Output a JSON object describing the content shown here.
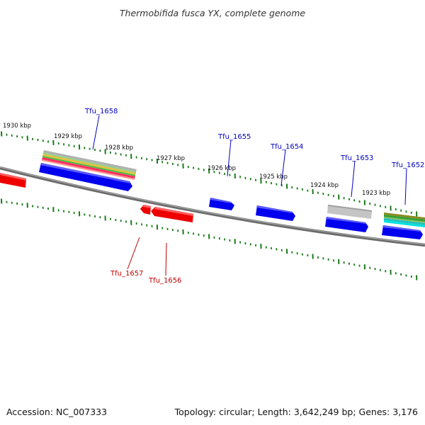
{
  "title": "Thermobifida fusca YX, complete genome",
  "footer": {
    "accession": "Accession: NC_007333",
    "summary": "Topology: circular; Length: 3,642,249 bp; Genes: 3,176"
  },
  "colors": {
    "forward": "#0000ee",
    "reverse": "#ee0000",
    "forward_label": "#0000bb",
    "reverse_label": "#bb0000",
    "backbone": "#808080",
    "ticks": "#1a7a1a"
  },
  "scale_labels": [
    "1930 kbp",
    "1929 kbp",
    "1928 kbp",
    "1927 kbp",
    "1926 kbp",
    "1925 kbp",
    "1924 kbp",
    "1923 kbp"
  ],
  "forward_labels": [
    "Tfu_1658",
    "Tfu_1655",
    "Tfu_1654",
    "Tfu_1653",
    "Tfu_1652"
  ],
  "reverse_labels": [
    "Tfu_1657",
    "Tfu_1656"
  ]
}
